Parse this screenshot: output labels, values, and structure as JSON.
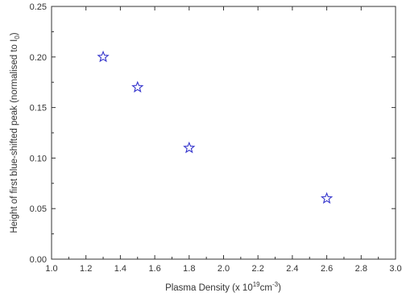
{
  "chart_data": {
    "type": "scatter",
    "title": "",
    "xlabel": {
      "prefix": "Plasma Density (x 10",
      "sup1": "19",
      "mid": "cm",
      "sup2": "-3",
      "suffix": ")"
    },
    "ylabel": {
      "prefix": "Height of first blue-shifted peak (normalised to I",
      "sub": "0",
      "suffix": ")"
    },
    "xlim": [
      1.0,
      3.0
    ],
    "ylim": [
      0.0,
      0.25
    ],
    "x_ticks": [
      "1.0",
      "1.2",
      "1.4",
      "1.6",
      "1.8",
      "2.0",
      "2.2",
      "2.4",
      "2.6",
      "2.8",
      "3.0"
    ],
    "y_ticks": [
      "0.00",
      "0.05",
      "0.10",
      "0.15",
      "0.20",
      "0.25"
    ],
    "grid": false,
    "marker": "open-star",
    "marker_color": "#3333cc",
    "points": [
      {
        "x": 1.3,
        "y": 0.2
      },
      {
        "x": 1.5,
        "y": 0.17
      },
      {
        "x": 1.8,
        "y": 0.11
      },
      {
        "x": 2.6,
        "y": 0.06
      }
    ]
  }
}
